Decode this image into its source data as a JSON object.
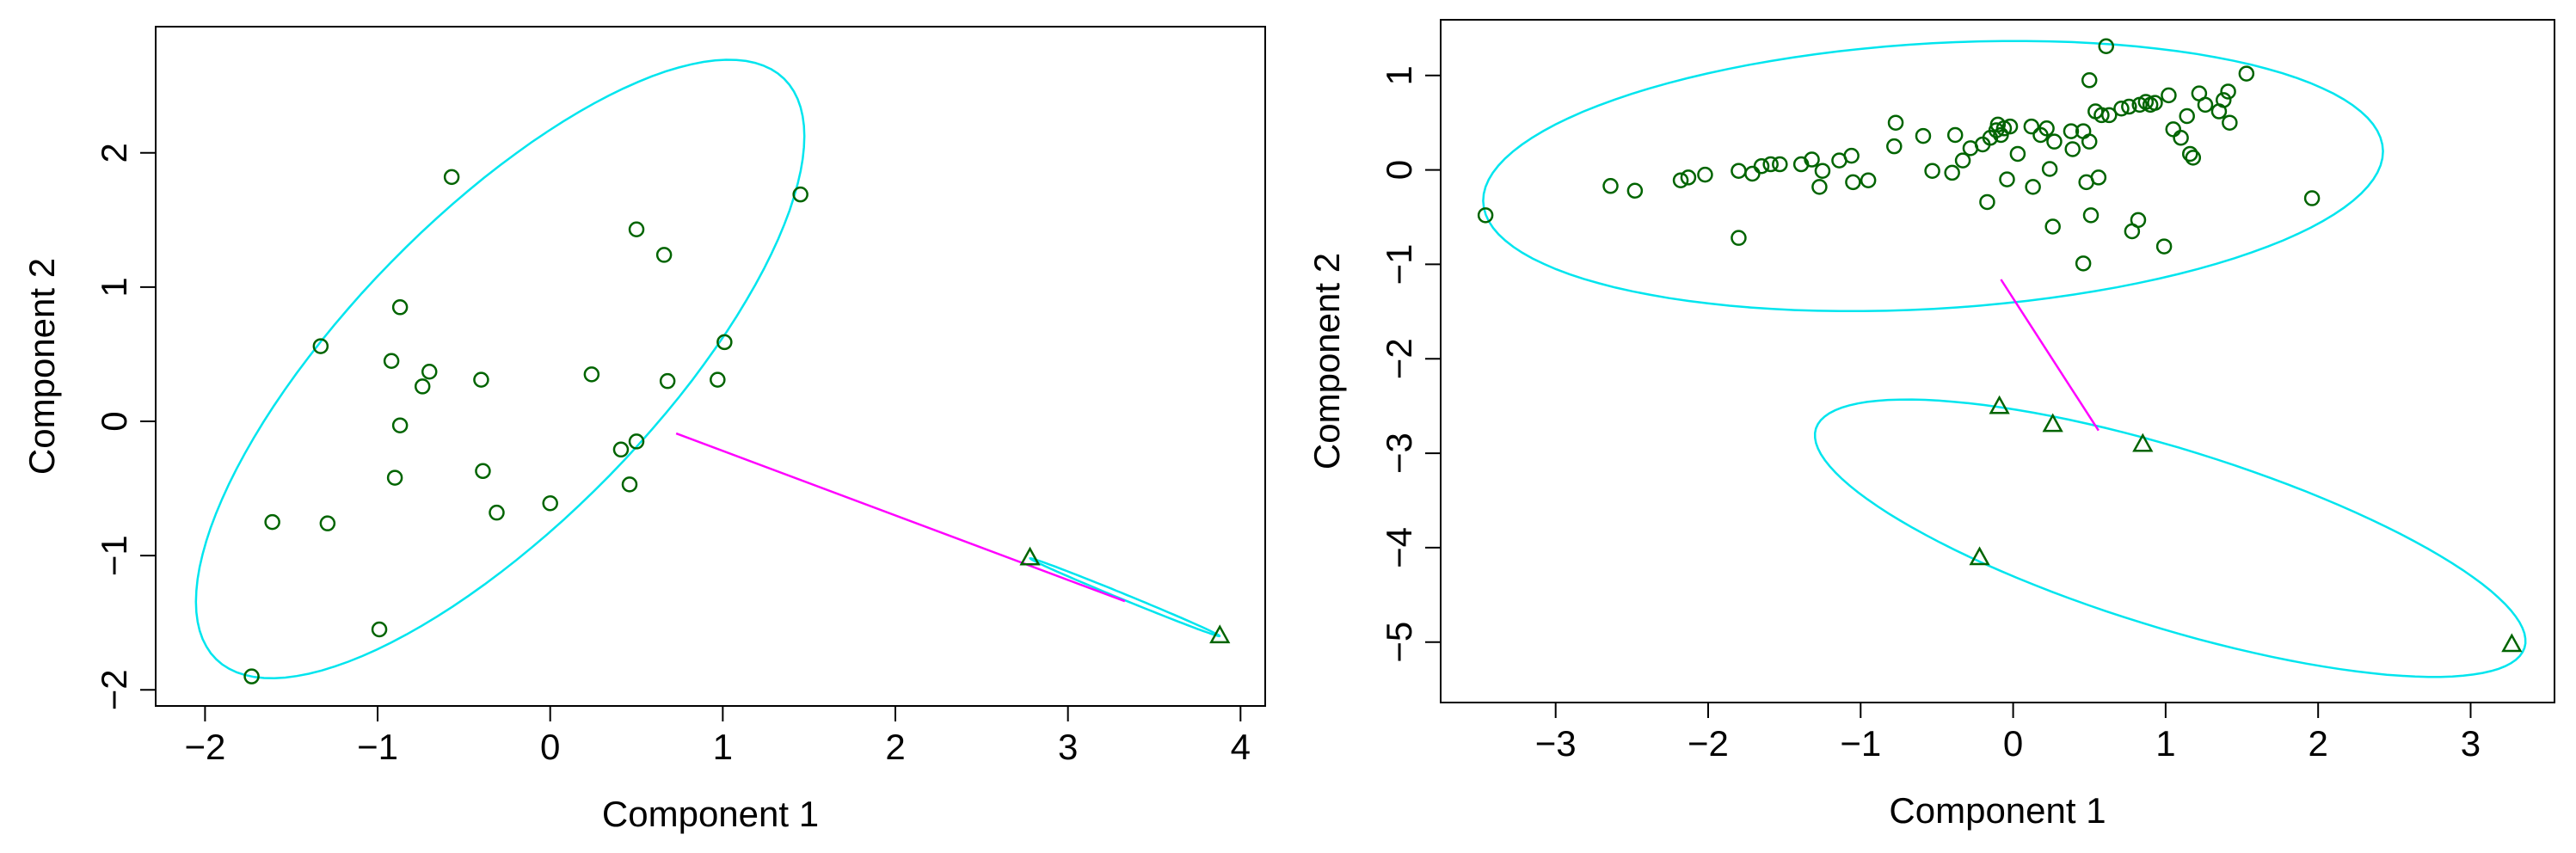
{
  "chart_data": [
    {
      "type": "scatter",
      "x_label": "Component 1",
      "y_label": "Component 2",
      "xlim": [
        -2.286,
        4.143
      ],
      "ylim": [
        -2.12,
        2.94
      ],
      "xticks": [
        {
          "value": -2,
          "label": "−2"
        },
        {
          "value": -1,
          "label": "−1"
        },
        0,
        1,
        2,
        3,
        4
      ],
      "yticks": [
        {
          "value": -2,
          "label": "−2"
        },
        {
          "value": -1,
          "label": "−1"
        },
        0,
        1,
        2
      ],
      "series": [
        {
          "marker": "circle",
          "color": "#006400",
          "x": [
            -0.571,
            1.45,
            0.5,
            0.66,
            -0.87,
            1.01,
            -1.33,
            -0.92,
            -0.7,
            -0.74,
            -0.4,
            0.24,
            0.68,
            0.97,
            -0.87,
            0.5,
            0.41,
            -0.39,
            -0.9,
            0.46,
            0.0,
            -0.31,
            -1.61,
            -1.29,
            -0.99,
            -1.73
          ],
          "y": [
            1.82,
            1.69,
            1.43,
            1.24,
            0.85,
            0.59,
            0.56,
            0.45,
            0.37,
            0.26,
            0.31,
            0.35,
            0.3,
            0.31,
            -0.03,
            -0.15,
            -0.21,
            -0.37,
            -0.42,
            -0.47,
            -0.61,
            -0.68,
            -0.75,
            -0.76,
            -1.55,
            -1.9
          ]
        },
        {
          "marker": "triangle",
          "color": "#006400",
          "x": [
            2.78,
            3.88
          ],
          "y": [
            -1.02,
            -1.6
          ]
        }
      ],
      "ellipses": [
        {
          "center": [
            -0.29,
            0.39
          ],
          "semi_axes": [
            2.73,
            0.98
          ],
          "angle": 54.9,
          "color": "#00e5ee"
        },
        {
          "center": [
            3.33,
            -1.31
          ],
          "semi_axes": [
            0.62,
            0.02
          ],
          "angle": -27.8,
          "color": "#00e5ee"
        }
      ],
      "segments": [
        {
          "from": [
            0.73,
            -0.09
          ],
          "to": [
            3.33,
            -1.34
          ],
          "color": "#ff00ff"
        }
      ]
    },
    {
      "type": "scatter",
      "x_label": "Component 1",
      "y_label": "Component 2",
      "xlim": [
        -3.754,
        3.55
      ],
      "ylim": [
        -5.64,
        1.59
      ],
      "xticks": [
        {
          "value": -3,
          "label": "−3"
        },
        {
          "value": -2,
          "label": "−2"
        },
        {
          "value": -1,
          "label": "−1"
        },
        0,
        1,
        2,
        3
      ],
      "yticks": [
        {
          "value": -5,
          "label": "−5"
        },
        {
          "value": -4,
          "label": "−4"
        },
        {
          "value": -3,
          "label": "−3"
        },
        {
          "value": -2,
          "label": "−2"
        },
        {
          "value": -1,
          "label": "−1"
        },
        0,
        1
      ],
      "series": [
        {
          "marker": "circle",
          "color": "#006400",
          "x": [
            -3.46,
            0.61,
            1.53,
            1.96,
            0.99,
            -1.8,
            0.46,
            0.51,
            0.26,
            0.82,
            0.78,
            -2.64,
            -2.48,
            -2.18,
            -2.13,
            -2.02,
            -1.8,
            -1.71,
            -1.65,
            -1.59,
            -1.53,
            -1.39,
            -1.32,
            -1.27,
            -1.25,
            -1.14,
            -1.06,
            -1.05,
            -0.95,
            -0.78,
            -0.77,
            -0.59,
            -0.53,
            -0.38,
            -0.4,
            -0.33,
            -0.2,
            -0.17,
            -0.15,
            -0.11,
            -0.1,
            -0.08,
            -0.06,
            -0.04,
            -0.02,
            0.03,
            0.12,
            0.13,
            0.18,
            0.22,
            0.24,
            0.27,
            0.38,
            0.46,
            0.48,
            0.5,
            0.39,
            0.5,
            0.54,
            0.58,
            0.63,
            0.71,
            0.76,
            0.83,
            0.87,
            0.9,
            0.93,
            1.02,
            1.05,
            1.1,
            1.14,
            1.16,
            1.18,
            1.22,
            1.26,
            1.35,
            1.38,
            1.41,
            1.42,
            0.56,
            -0.28
          ],
          "y": [
            -0.48,
            1.31,
            1.02,
            -0.3,
            -0.81,
            -0.72,
            -0.99,
            -0.48,
            -0.6,
            -0.53,
            -0.65,
            -0.17,
            -0.22,
            -0.11,
            -0.08,
            -0.05,
            -0.01,
            -0.04,
            0.04,
            0.06,
            0.06,
            0.06,
            0.11,
            -0.18,
            -0.01,
            0.1,
            0.15,
            -0.13,
            -0.11,
            0.25,
            0.5,
            0.36,
            -0.01,
            0.37,
            -0.03,
            0.1,
            0.27,
            -0.34,
            0.34,
            0.42,
            0.48,
            0.37,
            0.44,
            -0.1,
            0.46,
            0.17,
            0.46,
            -0.18,
            0.37,
            0.44,
            0.01,
            0.3,
            0.41,
            0.41,
            -0.13,
            0.3,
            0.22,
            0.95,
            0.62,
            0.58,
            0.58,
            0.65,
            0.67,
            0.69,
            0.72,
            0.69,
            0.71,
            0.79,
            0.43,
            0.34,
            0.57,
            0.17,
            0.13,
            0.81,
            0.69,
            0.62,
            0.74,
            0.83,
            0.5,
            -0.08,
            0.23
          ]
        },
        {
          "marker": "triangle",
          "color": "#006400",
          "x": [
            -0.09,
            0.26,
            0.85,
            -0.22,
            3.27
          ],
          "y": [
            -2.51,
            -2.7,
            -2.91,
            -4.11,
            -5.03
          ]
        }
      ],
      "ellipses": [
        {
          "center": [
            -0.525,
            -0.065
          ],
          "semi_axes": [
            2.965,
            1.4
          ],
          "angle": 6.5,
          "color": "#00e5ee"
        },
        {
          "center": [
            1.03,
            -3.9
          ],
          "semi_axes": [
            2.61,
            0.88
          ],
          "angle": -28.6,
          "color": "#00e5ee"
        }
      ],
      "segments": [
        {
          "from": [
            -0.08,
            -1.16
          ],
          "to": [
            0.56,
            -2.76
          ],
          "color": "#ff00ff"
        }
      ]
    }
  ]
}
